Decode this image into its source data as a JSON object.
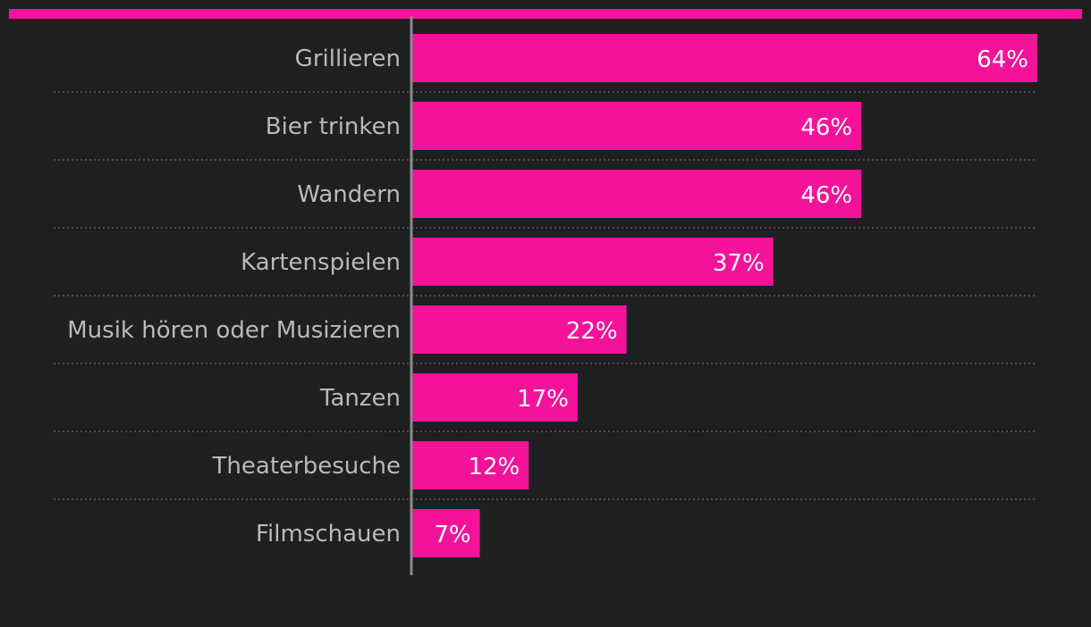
{
  "colors": {
    "background": "#1e1f21",
    "accent": "#f5129a",
    "bar": "#f5129a",
    "category_text": "#b9b9b9",
    "value_text": "#ffffff",
    "axis": "#8a8a8a",
    "separator": "#5a5a5a"
  },
  "chart_data": {
    "type": "bar",
    "orientation": "horizontal",
    "categories": [
      "Grillieren",
      "Bier trinken",
      "Wandern",
      "Kartenspielen",
      "Musik hören oder Musizieren",
      "Tanzen",
      "Theaterbesuche",
      "Filmschauen"
    ],
    "values": [
      64,
      46,
      46,
      37,
      22,
      17,
      12,
      7
    ],
    "value_labels": [
      "64%",
      "46%",
      "46%",
      "37%",
      "22%",
      "17%",
      "12%",
      "7%"
    ],
    "unit": "%",
    "xlim": [
      0,
      64
    ],
    "grid": false,
    "legend": "none"
  }
}
